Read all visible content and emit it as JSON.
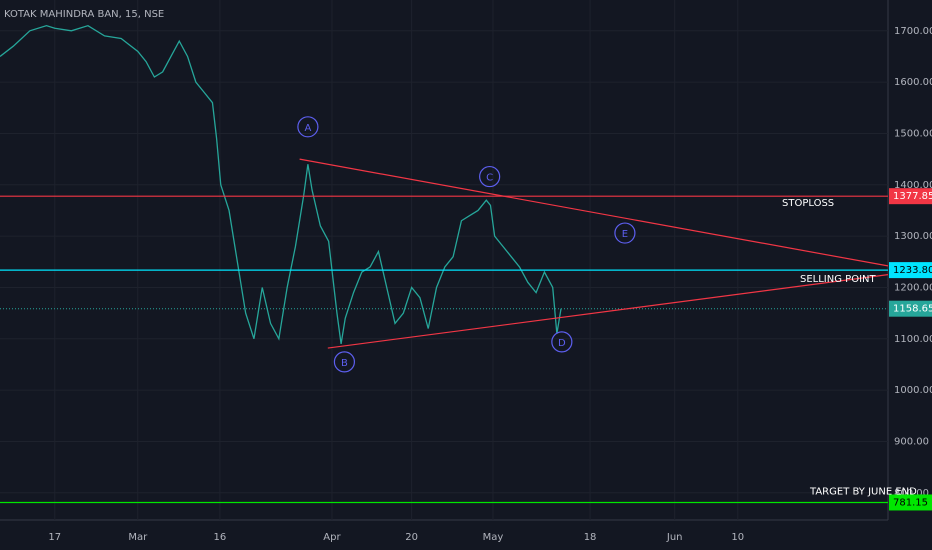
{
  "chart_data": {
    "type": "line",
    "title": "KOTAK MAHINDRA BAN, 15, NSE",
    "color": "#26a69a",
    "x": [
      -6.6,
      -5,
      -3,
      -1,
      0,
      2,
      4,
      6,
      8,
      10,
      11,
      12,
      13,
      14,
      15,
      16,
      17,
      18,
      19,
      19.5,
      20,
      21,
      22,
      23,
      24,
      25,
      26,
      27,
      28,
      29,
      30,
      30.5,
      31,
      32,
      33,
      34,
      34.5,
      35,
      36,
      37,
      38,
      39,
      40,
      41,
      42,
      43,
      44,
      45,
      46,
      47,
      48,
      49,
      50,
      51,
      52,
      52.5,
      53,
      54,
      55,
      56,
      57,
      58,
      59,
      60,
      60.5,
      61
    ],
    "values": [
      1650,
      1670,
      1700,
      1710,
      1705,
      1700,
      1710,
      1690,
      1685,
      1660,
      1640,
      1610,
      1620,
      1650,
      1680,
      1650,
      1600,
      1580,
      1560,
      1490,
      1400,
      1350,
      1250,
      1150,
      1100,
      1200,
      1130,
      1100,
      1200,
      1280,
      1380,
      1440,
      1390,
      1320,
      1290,
      1150,
      1090,
      1140,
      1190,
      1230,
      1240,
      1270,
      1200,
      1130,
      1150,
      1200,
      1180,
      1120,
      1200,
      1240,
      1260,
      1330,
      1340,
      1350,
      1370,
      1360,
      1300,
      1280,
      1260,
      1240,
      1210,
      1190,
      1230,
      1200,
      1110,
      1158.65
    ],
    "xlim": [
      -6.6,
      100.4
    ],
    "ylim": [
      747,
      1760
    ],
    "xticks": [
      {
        "value": 0,
        "label": "17"
      },
      {
        "value": 10,
        "label": "Mar"
      },
      {
        "value": 19.9,
        "label": "16"
      },
      {
        "value": 33.4,
        "label": "Apr"
      },
      {
        "value": 43,
        "label": "20"
      },
      {
        "value": 52.8,
        "label": "May"
      },
      {
        "value": 64.5,
        "label": "18"
      },
      {
        "value": 74.7,
        "label": "Jun"
      },
      {
        "value": 82.3,
        "label": "10"
      }
    ],
    "yticks": [
      {
        "value": 800,
        "label": "800.00"
      },
      {
        "value": 900,
        "label": "900.00"
      },
      {
        "value": 1000,
        "label": "1000.00"
      },
      {
        "value": 1100,
        "label": "1100.00"
      },
      {
        "value": 1200,
        "label": "1200.00"
      },
      {
        "value": 1300,
        "label": "1300.00"
      },
      {
        "value": 1400,
        "label": "1400.00"
      },
      {
        "value": 1500,
        "label": "1500.00"
      },
      {
        "value": 1600,
        "label": "1600.00"
      },
      {
        "value": 1700,
        "label": "1700.00"
      }
    ],
    "grid": true,
    "levels": [
      {
        "value": 1377.85,
        "value_label": "1377.85",
        "color": "#f23645",
        "note": "STOPLOSS"
      },
      {
        "value": 1233.8,
        "value_label": "1233.80",
        "color": "#00e5ff",
        "note": "SELLING POINT"
      },
      {
        "value": 1158.65,
        "value_label": "1158.65",
        "color": "#26a69a",
        "dashed": true
      },
      {
        "value": 781.15,
        "value_label": "781.15",
        "color": "#00e600",
        "note": "TARGET BY JUNE END"
      }
    ],
    "trendlines": [
      {
        "x": [
          29.5,
          100.4
        ],
        "values": [
          1450,
          1242
        ],
        "color": "#f23645"
      },
      {
        "x": [
          32.9,
          100.4
        ],
        "values": [
          1082,
          1225
        ],
        "color": "#f23645"
      }
    ],
    "wave_labels": [
      {
        "label": "A",
        "x": 30.5,
        "value": 1513
      },
      {
        "label": "B",
        "x": 34.9,
        "value": 1055
      },
      {
        "label": "C",
        "x": 52.4,
        "value": 1416
      },
      {
        "label": "D",
        "x": 61.1,
        "value": 1094
      },
      {
        "label": "E",
        "x": 68.7,
        "value": 1306
      }
    ]
  }
}
